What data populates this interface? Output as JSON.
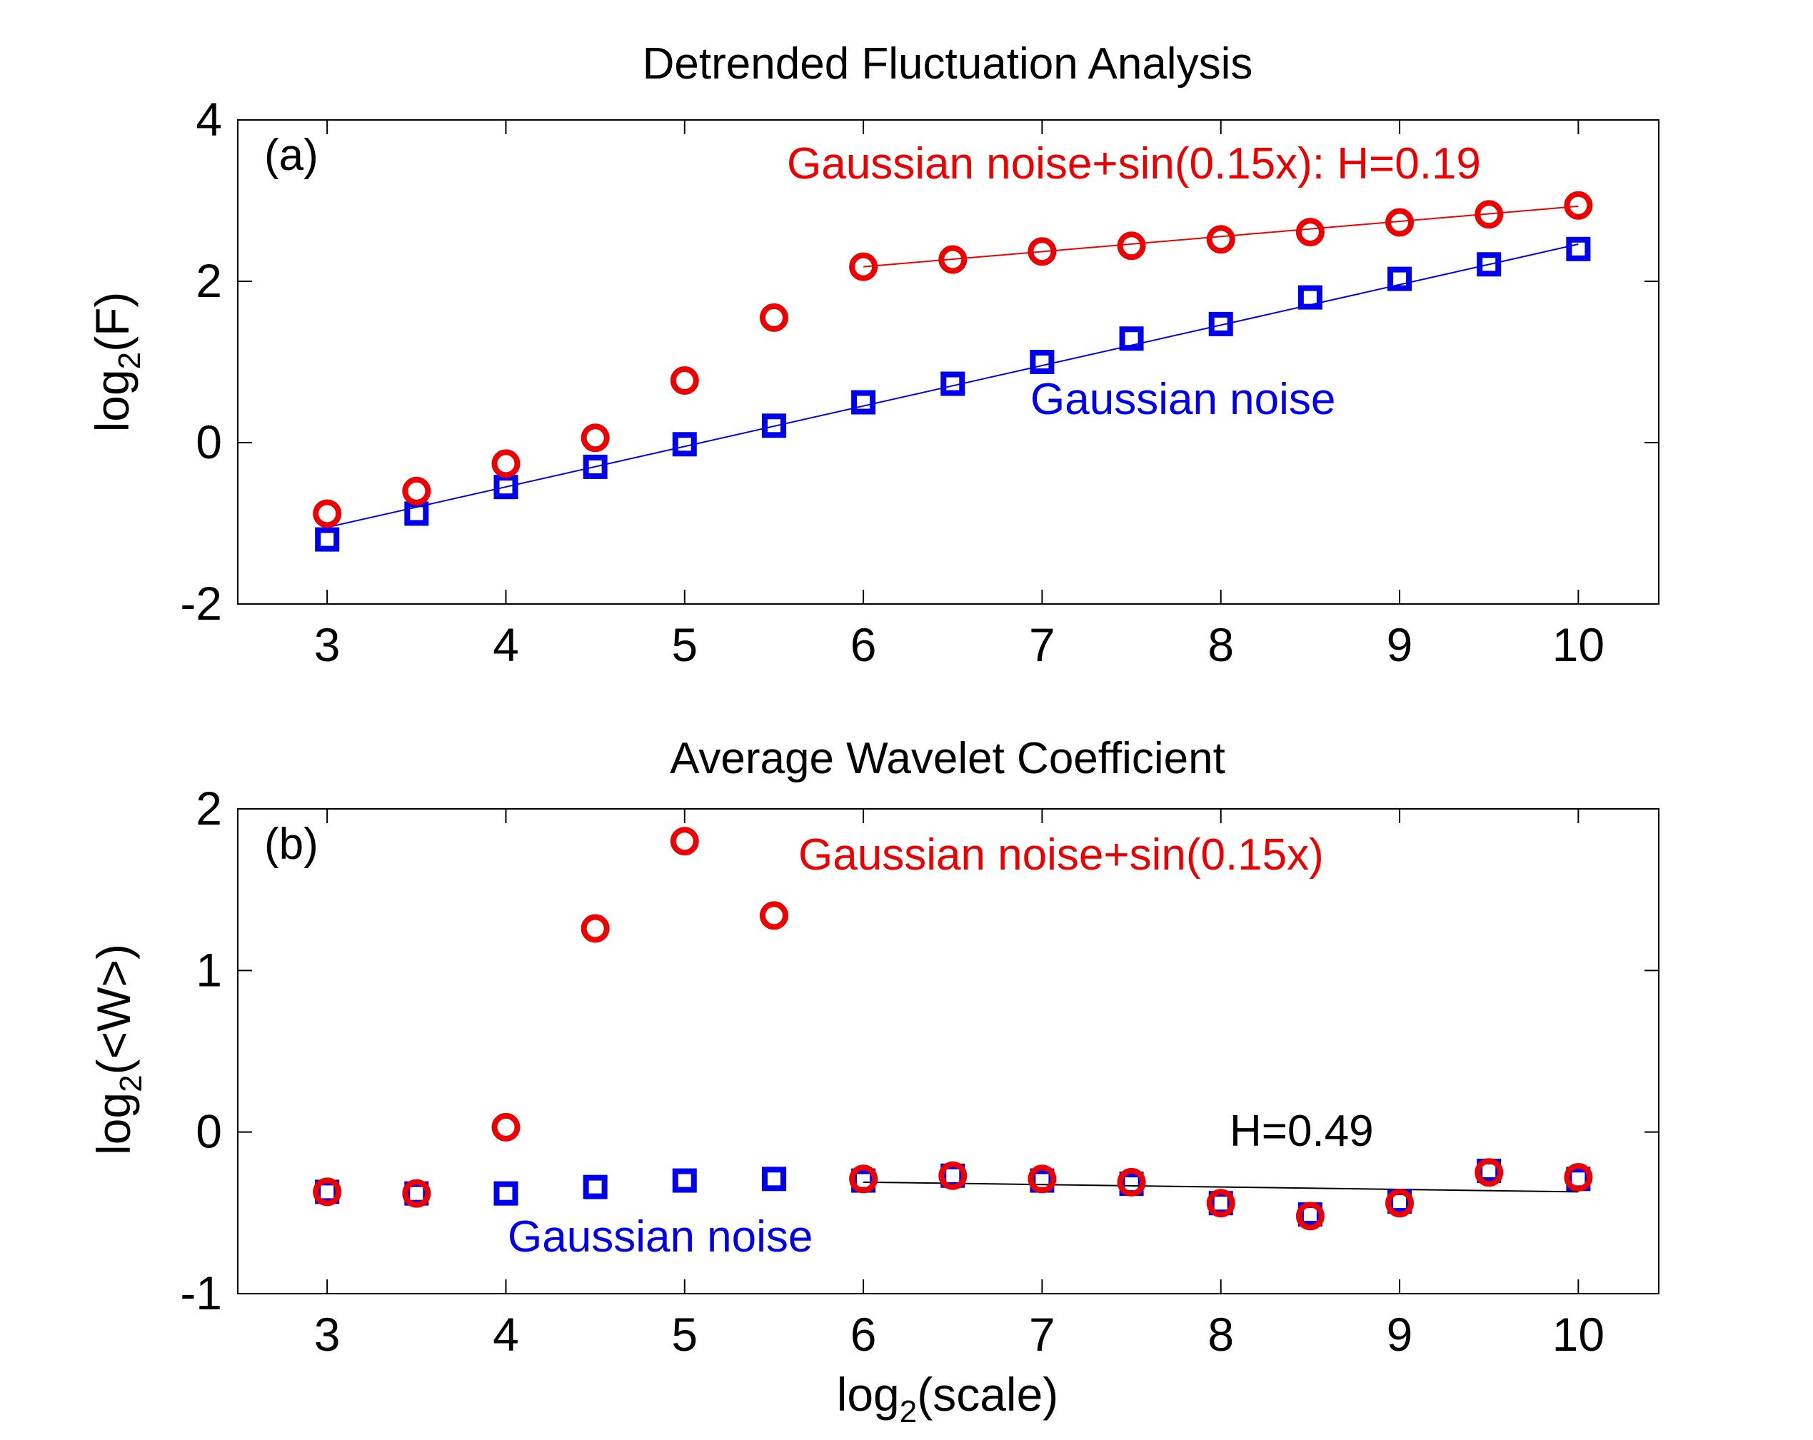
{
  "chart_data": [
    {
      "type": "scatter",
      "panel_label": "(a)",
      "title": "Detrended Fluctuation Analysis",
      "xlabel": "",
      "ylabel": {
        "base": "log",
        "sub": "2",
        "rest": "(F)"
      },
      "xlim": [
        2.5,
        10.45
      ],
      "ylim": [
        -2,
        4
      ],
      "xticks": [
        3,
        4,
        5,
        6,
        7,
        8,
        9,
        10
      ],
      "yticks": [
        -2,
        0,
        2,
        4
      ],
      "x": [
        3,
        3.5,
        4,
        4.5,
        5,
        5.5,
        6,
        6.5,
        7,
        7.5,
        8,
        8.5,
        9,
        9.5,
        10
      ],
      "series": [
        {
          "name": "Gaussian noise",
          "marker": "square",
          "color": "#0000ee",
          "values": [
            -1.2,
            -0.88,
            -0.55,
            -0.3,
            -0.02,
            0.21,
            0.5,
            0.73,
            1.0,
            1.29,
            1.47,
            1.8,
            2.03,
            2.21,
            2.4
          ],
          "fit": {
            "x": [
              3,
              10
            ],
            "y": [
              -1.05,
              2.46
            ]
          }
        },
        {
          "name": "Gaussian noise+sin(0.15x)",
          "marker": "circle",
          "color": "#ee0000",
          "values": [
            -0.88,
            -0.6,
            -0.26,
            0.06,
            0.77,
            1.55,
            2.18,
            2.27,
            2.37,
            2.44,
            2.52,
            2.61,
            2.73,
            2.83,
            2.94
          ],
          "fit": {
            "x": [
              6,
              10
            ],
            "y": [
              2.18,
              2.93
            ]
          }
        }
      ],
      "annotations": [
        {
          "text": "Gaussian noise+sin(0.15x): H=0.19",
          "color": "#ee0000"
        },
        {
          "text": "Gaussian noise",
          "color": "#0000ee"
        }
      ]
    },
    {
      "type": "scatter",
      "panel_label": "(b)",
      "title": "Average Wavelet Coefficient",
      "xlabel": {
        "base": "log",
        "sub": "2",
        "rest": "(scale)"
      },
      "ylabel": {
        "base": "log",
        "sub": "2",
        "rest": "(<W>)"
      },
      "xlim": [
        2.5,
        10.45
      ],
      "ylim": [
        -1,
        2
      ],
      "xticks": [
        3,
        4,
        5,
        6,
        7,
        8,
        9,
        10
      ],
      "yticks": [
        -1,
        0,
        1,
        2
      ],
      "x": [
        3,
        3.5,
        4,
        4.5,
        5,
        5.5,
        6,
        6.5,
        7,
        7.5,
        8,
        8.5,
        9,
        9.5,
        10
      ],
      "series": [
        {
          "name": "Gaussian noise",
          "marker": "square",
          "color": "#0000ee",
          "values": [
            -0.37,
            -0.38,
            -0.38,
            -0.34,
            -0.3,
            -0.29,
            -0.3,
            -0.27,
            -0.3,
            -0.32,
            -0.44,
            -0.51,
            -0.43,
            -0.24,
            -0.29
          ],
          "fit": null
        },
        {
          "name": "Gaussian noise+sin(0.15x)",
          "marker": "circle",
          "color": "#ee0000",
          "values": [
            -0.37,
            -0.38,
            0.03,
            1.26,
            1.8,
            1.34,
            -0.29,
            -0.27,
            -0.29,
            -0.31,
            -0.44,
            -0.52,
            -0.44,
            -0.25,
            -0.28
          ],
          "fit": {
            "x": [
              6,
              10
            ],
            "y": [
              -0.31,
              -0.37
            ],
            "color": "#000000"
          }
        }
      ],
      "annotations": [
        {
          "text": "Gaussian noise+sin(0.15x)",
          "color": "#ee0000"
        },
        {
          "text": "H=0.49",
          "color": "#000000"
        },
        {
          "text": "Gaussian noise",
          "color": "#0000ee"
        }
      ]
    }
  ]
}
